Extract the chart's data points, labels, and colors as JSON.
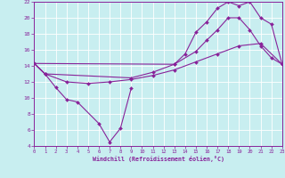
{
  "bg_color": "#c8eef0",
  "grid_color": "#b0dde0",
  "line_color": "#882299",
  "xlabel": "Windchill (Refroidissement éolien,°C)",
  "xlim": [
    0,
    23
  ],
  "ylim": [
    4,
    22
  ],
  "xticks": [
    0,
    1,
    2,
    3,
    4,
    5,
    6,
    7,
    8,
    9,
    10,
    11,
    12,
    13,
    14,
    15,
    16,
    17,
    18,
    19,
    20,
    21,
    22,
    23
  ],
  "yticks": [
    4,
    6,
    8,
    10,
    12,
    14,
    16,
    18,
    20,
    22
  ],
  "series": [
    {
      "x": [
        0,
        1,
        2,
        3,
        4,
        6,
        7,
        8,
        9
      ],
      "y": [
        14.3,
        13.0,
        11.3,
        9.8,
        9.5,
        6.8,
        4.5,
        6.2,
        11.2
      ]
    },
    {
      "x": [
        0,
        1,
        3,
        5,
        7,
        9,
        11,
        13,
        15,
        17,
        19,
        21,
        23
      ],
      "y": [
        14.3,
        13.0,
        12.0,
        11.8,
        12.0,
        12.3,
        12.8,
        13.5,
        14.5,
        15.5,
        16.5,
        16.8,
        14.2
      ]
    },
    {
      "x": [
        0,
        1,
        9,
        11,
        13,
        15,
        16,
        17,
        18,
        19,
        20,
        21,
        22,
        23
      ],
      "y": [
        14.3,
        13.0,
        12.5,
        13.2,
        14.2,
        15.8,
        17.2,
        18.5,
        20.0,
        20.0,
        18.5,
        16.5,
        15.0,
        14.2
      ]
    },
    {
      "x": [
        0,
        13,
        14,
        15,
        16,
        17,
        18,
        19,
        20,
        21,
        22,
        23
      ],
      "y": [
        14.3,
        14.2,
        15.5,
        18.2,
        19.5,
        21.2,
        22.0,
        21.5,
        22.0,
        20.0,
        19.2,
        14.2
      ]
    }
  ]
}
